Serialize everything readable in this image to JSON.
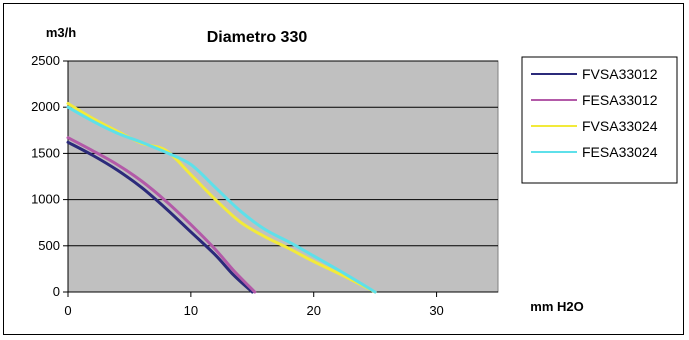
{
  "chart_data": {
    "type": "line",
    "title": "Diametro 330",
    "xlabel": "mm H2O",
    "ylabel": "m3/h",
    "xlim": [
      0,
      35
    ],
    "ylim": [
      0,
      2500
    ],
    "x_ticks": [
      0,
      10,
      20,
      30
    ],
    "y_ticks": [
      0,
      500,
      1000,
      1500,
      2000,
      2500
    ],
    "grid": "horizontal",
    "plot_background": "#c0c0c0",
    "legend_position": "right",
    "series": [
      {
        "name": "FVSA33012",
        "color": "#2b2a7a",
        "points": [
          [
            0,
            1620
          ],
          [
            2,
            1480
          ],
          [
            4,
            1320
          ],
          [
            6,
            1130
          ],
          [
            8,
            900
          ],
          [
            10,
            650
          ],
          [
            12,
            400
          ],
          [
            13.5,
            180
          ],
          [
            15,
            0
          ]
        ]
      },
      {
        "name": "FESA33012",
        "color": "#b35aa8",
        "points": [
          [
            0,
            1670
          ],
          [
            2,
            1530
          ],
          [
            4,
            1380
          ],
          [
            6,
            1200
          ],
          [
            8,
            980
          ],
          [
            10,
            730
          ],
          [
            12,
            460
          ],
          [
            13.5,
            230
          ],
          [
            15.2,
            0
          ]
        ]
      },
      {
        "name": "FVSA33024",
        "color": "#f2ea3a",
        "points": [
          [
            0,
            2040
          ],
          [
            2,
            1880
          ],
          [
            4,
            1740
          ],
          [
            6,
            1610
          ],
          [
            8,
            1530
          ],
          [
            10,
            1270
          ],
          [
            12,
            1000
          ],
          [
            14,
            760
          ],
          [
            16,
            600
          ],
          [
            18,
            470
          ],
          [
            20,
            330
          ],
          [
            22.5,
            170
          ],
          [
            25,
            0
          ]
        ]
      },
      {
        "name": "FESA33024",
        "color": "#5ee0ea",
        "points": [
          [
            0,
            2000
          ],
          [
            2,
            1850
          ],
          [
            4,
            1720
          ],
          [
            6,
            1620
          ],
          [
            8,
            1510
          ],
          [
            10,
            1380
          ],
          [
            12,
            1130
          ],
          [
            14,
            880
          ],
          [
            16,
            680
          ],
          [
            18,
            540
          ],
          [
            20,
            390
          ],
          [
            22.5,
            200
          ],
          [
            25,
            0
          ]
        ]
      }
    ]
  }
}
